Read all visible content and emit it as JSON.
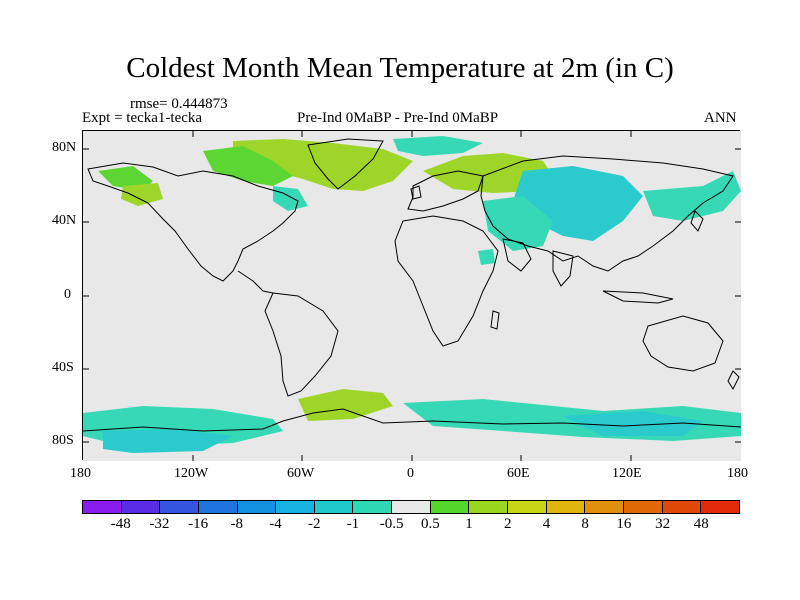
{
  "title": "Coldest Month Mean Temperature at 2m (in C)",
  "rmse": "rmse= 0.444873",
  "expt": "Expt = tecka1-tecka",
  "center_label": "Pre-Ind 0MaBP - Pre-Ind 0MaBP",
  "period": "ANN",
  "lat_ticks": [
    "80N",
    "40N",
    "0",
    "40S",
    "80S"
  ],
  "lon_ticks": [
    "180",
    "120W",
    "60W",
    "0",
    "60E",
    "120E",
    "180"
  ],
  "colorbar": {
    "labels": [
      "-48",
      "-32",
      "-16",
      "-8",
      "-4",
      "-2",
      "-1",
      "-0.5",
      "0.5",
      "1",
      "2",
      "4",
      "8",
      "16",
      "32",
      "48"
    ],
    "colors": [
      "#8a1cf0",
      "#5a2ce8",
      "#3355e0",
      "#1f74dd",
      "#1492e0",
      "#18b2e0",
      "#20c9cc",
      "#2ed8b4",
      "#e8e8e8",
      "#55d62a",
      "#9ad61e",
      "#c8d416",
      "#e0b60c",
      "#e0900a",
      "#e06a08",
      "#e04808",
      "#e02a08"
    ]
  },
  "colors": {
    "background": "#e8e8e8",
    "land_outline": "#000000"
  }
}
